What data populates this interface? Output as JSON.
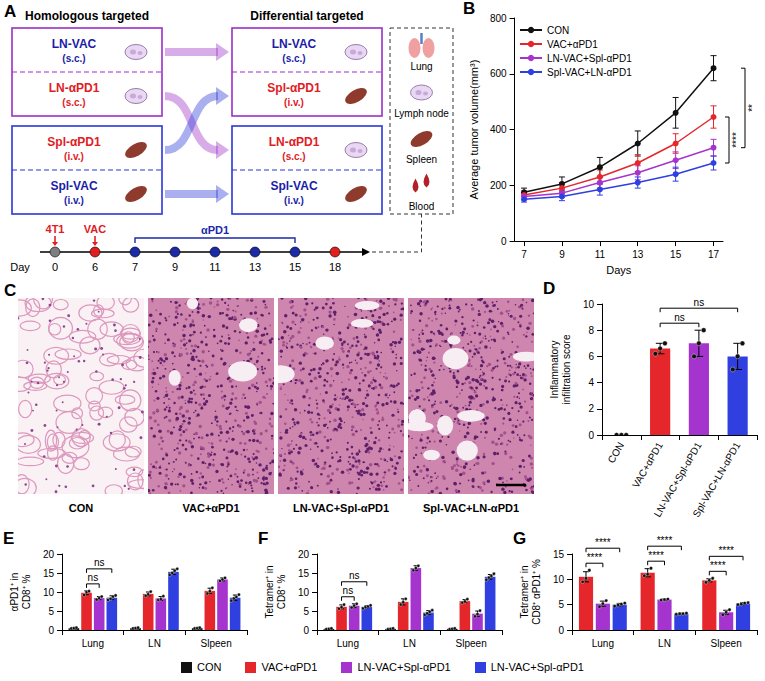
{
  "diagram": {
    "panel": "A",
    "title_left": "Homologous targeted",
    "title_right": "Differential targeted",
    "left": [
      {
        "border": "#9a2fc9",
        "items": [
          {
            "label": "LN-VAC",
            "route": "(s.c.)",
            "color": "#1c1ca8"
          },
          {
            "label": "LN-αPD1",
            "route": "(s.c.)",
            "color": "#e0201f"
          }
        ]
      },
      {
        "border": "#2a36d6",
        "items": [
          {
            "label": "Spl-αPD1",
            "route": "(i.v.)",
            "color": "#e0201f"
          },
          {
            "label": "Spl-VAC",
            "route": "(i.v.)",
            "color": "#1c1ca8"
          }
        ]
      }
    ],
    "right": [
      {
        "border": "#9a2fc9",
        "items": [
          {
            "label": "LN-VAC",
            "route": "(s.c.)",
            "color": "#1c1ca8"
          },
          {
            "label": "Spl-αPD1",
            "route": "(i.v.)",
            "color": "#e0201f"
          }
        ]
      },
      {
        "border": "#2a36d6",
        "items": [
          {
            "label": "LN-αPD1",
            "route": "(s.c.)",
            "color": "#e0201f"
          },
          {
            "label": "Spl-VAC",
            "route": "(i.v.)",
            "color": "#1c1ca8"
          }
        ]
      }
    ],
    "organs": [
      "Lung",
      "Lymph node",
      "Spleen",
      "Blood"
    ],
    "timeline": {
      "label": "Day",
      "days": [
        0,
        6,
        7,
        9,
        11,
        13,
        15,
        18
      ],
      "colors": [
        "#7f7f7f",
        "#e0201f",
        "#1c2aa8",
        "#1c2aa8",
        "#1c2aa8",
        "#1c2aa8",
        "#1c2aa8",
        "#e0201f"
      ],
      "events": [
        {
          "text": "4T1",
          "day": 0,
          "color": "#e0201f"
        },
        {
          "text": "VAC",
          "day": 6,
          "color": "#e0201f"
        },
        {
          "text": "αPD1",
          "from": 7,
          "to": 15,
          "color": "#1c2aa8"
        }
      ]
    }
  },
  "images": {
    "panel": "C",
    "labels": [
      "CON",
      "VAC+αPD1",
      "LN-VAC+Spl-αPD1",
      "Spl-VAC+LN-αPD1"
    ]
  },
  "chart_data": [
    {
      "panel": "B",
      "type": "line",
      "x": [
        7,
        9,
        11,
        13,
        15,
        17
      ],
      "xlim": [
        6.5,
        17.5
      ],
      "xticks": [
        7,
        9,
        11,
        13,
        15,
        17
      ],
      "ylim": [
        0,
        800
      ],
      "yticks": [
        0,
        200,
        400,
        600,
        800
      ],
      "xlabel": "Days",
      "ylabel": "Average tumor volume(mm³)",
      "legend": "top-left",
      "grid": false,
      "marker": "circle",
      "series": [
        {
          "name": "CON",
          "color": "#111111",
          "values": [
            175,
            205,
            265,
            350,
            460,
            620
          ],
          "errors": [
            15,
            25,
            35,
            45,
            55,
            45
          ]
        },
        {
          "name": "VAC+αPD1",
          "color": "#e5262b",
          "values": [
            165,
            190,
            230,
            280,
            350,
            445
          ],
          "errors": [
            15,
            20,
            25,
            30,
            35,
            40
          ]
        },
        {
          "name": "LN-VAC+Spl-αPD1",
          "color": "#a534cf",
          "values": [
            160,
            172,
            210,
            245,
            290,
            335
          ],
          "errors": [
            12,
            15,
            20,
            25,
            30,
            30
          ]
        },
        {
          "name": "Spl-VAC+LN-αPD1",
          "color": "#2f3fe0",
          "values": [
            150,
            160,
            185,
            210,
            240,
            280
          ],
          "errors": [
            10,
            15,
            20,
            20,
            25,
            25
          ]
        }
      ],
      "annotations": [
        {
          "text": "****",
          "y": [
            280,
            445
          ]
        },
        {
          "text": "**",
          "y": [
            335,
            620
          ]
        }
      ]
    },
    {
      "panel": "D",
      "type": "bar",
      "categories": [
        "CON",
        "VAC+αPD1",
        "LN-VAC+Spl-αPD1",
        "Spl-VAC+LN-αPD1"
      ],
      "values": [
        0,
        6.6,
        7.0,
        6.0
      ],
      "errors": [
        0,
        0.4,
        1.0,
        1.0
      ],
      "points": [
        [
          0,
          0,
          0
        ],
        [
          6.2,
          6.6,
          7.0
        ],
        [
          6.0,
          7.0,
          8.0
        ],
        [
          5.0,
          6.0,
          7.0
        ]
      ],
      "colors": [
        "#111111",
        "#e5262b",
        "#a534cf",
        "#2f3fe0"
      ],
      "ylabel": "Inflammatory infiltration score",
      "ylim": [
        0,
        10
      ],
      "yticks": [
        0,
        2,
        4,
        6,
        8,
        10
      ],
      "grid": false,
      "annotations": [
        {
          "text": "ns",
          "from": "VAC+αPD1",
          "to": "LN-VAC+Spl-αPD1"
        },
        {
          "text": "ns",
          "from": "VAC+αPD1",
          "to": "Spl-VAC+LN-αPD1"
        }
      ]
    },
    {
      "panel": "E",
      "type": "bar",
      "categories": [
        "Lung",
        "LN",
        "Slpeen"
      ],
      "ylabel": "αPD1⁺ in CD8⁺ %",
      "ylim": [
        0,
        20
      ],
      "yticks": [
        0,
        5,
        10,
        15,
        20
      ],
      "grid": false,
      "legend": "bottom",
      "series": [
        {
          "name": "CON",
          "color": "#111111",
          "values": [
            0.5,
            0.5,
            0.5
          ],
          "errors": [
            0.1,
            0.1,
            0.1
          ],
          "points": [
            [
              0.4,
              0.5,
              0.6
            ],
            [
              0.4,
              0.5,
              0.6
            ],
            [
              0.4,
              0.5,
              0.6
            ]
          ]
        },
        {
          "name": "VAC+αPD1",
          "color": "#e5262b",
          "values": [
            9.8,
            9.5,
            10.3
          ],
          "errors": [
            0.5,
            0.5,
            0.7
          ],
          "points": [
            [
              9.2,
              10.0,
              10.2
            ],
            [
              9.0,
              9.4,
              10.1
            ],
            [
              9.6,
              10.2,
              11.1
            ]
          ]
        },
        {
          "name": "LN-VAC+Spl-αPD1",
          "color": "#a534cf",
          "values": [
            8.4,
            8.3,
            13.3
          ],
          "errors": [
            0.4,
            0.5,
            0.4
          ],
          "points": [
            [
              8.0,
              8.4,
              8.8
            ],
            [
              7.9,
              8.1,
              8.9
            ],
            [
              12.9,
              13.3,
              13.7
            ]
          ]
        },
        {
          "name": "LN-VAC+Spl-αPD1",
          "color": "#2f3fe0",
          "values": [
            8.5,
            15.3,
            8.5
          ],
          "errors": [
            0.5,
            0.7,
            0.7
          ],
          "points": [
            [
              7.9,
              8.2,
              8.8,
              9.1
            ],
            [
              14.5,
              15.0,
              15.6,
              16.1
            ],
            [
              7.7,
              8.3,
              8.7,
              9.3
            ]
          ]
        }
      ],
      "annotations": [
        {
          "text": "ns",
          "category": "Lung",
          "from": 1,
          "to": 2
        },
        {
          "text": "ns",
          "category": "Lung",
          "from": 1,
          "to": 3
        }
      ]
    },
    {
      "panel": "F",
      "type": "bar",
      "categories": [
        "Lung",
        "LN",
        "Slpeen"
      ],
      "ylabel": "Tetramer⁺ in CD8⁺ %",
      "ylim": [
        0,
        20
      ],
      "yticks": [
        0,
        5,
        10,
        15,
        20
      ],
      "grid": false,
      "series": [
        {
          "name": "CON",
          "color": "#111111",
          "values": [
            0.3,
            0.3,
            0.3
          ],
          "errors": [
            0.1,
            0.1,
            0.1
          ],
          "points": [
            [
              0.2,
              0.3,
              0.4
            ],
            [
              0.2,
              0.3,
              0.4
            ],
            [
              0.2,
              0.3,
              0.4
            ]
          ]
        },
        {
          "name": "VAC+αPD1",
          "color": "#e5262b",
          "values": [
            6.1,
            7.4,
            7.6
          ],
          "errors": [
            0.5,
            0.8,
            0.4
          ],
          "points": [
            [
              5.6,
              6.0,
              6.7
            ],
            [
              6.7,
              7.3,
              8.2
            ],
            [
              7.2,
              7.5,
              8.1
            ]
          ]
        },
        {
          "name": "LN-VAC+Spl-αPD1",
          "color": "#a534cf",
          "values": [
            6.4,
            16.3,
            4.3
          ],
          "errors": [
            0.5,
            0.6,
            0.7
          ],
          "points": [
            [
              5.9,
              6.4,
              6.9
            ],
            [
              15.7,
              16.3,
              16.9
            ],
            [
              3.6,
              4.2,
              5.1
            ]
          ]
        },
        {
          "name": "LN-VAC+Spl-αPD1",
          "color": "#2f3fe0",
          "values": [
            6.1,
            4.6,
            14.0
          ],
          "errors": [
            0.3,
            0.5,
            0.6
          ],
          "points": [
            [
              5.7,
              6.0,
              6.2,
              6.5
            ],
            [
              4.0,
              4.4,
              4.8,
              5.2
            ],
            [
              13.2,
              13.8,
              14.2,
              14.8
            ]
          ]
        }
      ],
      "annotations": [
        {
          "text": "ns",
          "category": "Lung",
          "from": 1,
          "to": 2
        },
        {
          "text": "ns",
          "category": "Lung",
          "from": 1,
          "to": 3
        }
      ]
    },
    {
      "panel": "G",
      "type": "bar",
      "categories": [
        "Lung",
        "LN",
        "Slpeen"
      ],
      "ylabel": "Tetramer⁺ in CD8⁺ αPD1⁺ %",
      "ylim": [
        0,
        15
      ],
      "yticks": [
        0,
        5,
        10,
        15
      ],
      "grid": false,
      "series": [
        {
          "name": "VAC+αPD1",
          "color": "#e5262b",
          "values": [
            10.5,
            11.3,
            9.8
          ],
          "errors": [
            1.0,
            0.8,
            0.3
          ],
          "points": [
            [
              9.5,
              10.2,
              11.8
            ],
            [
              10.7,
              11.0,
              12.2
            ],
            [
              9.4,
              9.8,
              10.2
            ]
          ]
        },
        {
          "name": "LN-VAC+Spl-αPD1",
          "color": "#a534cf",
          "values": [
            5.2,
            6.0,
            3.5
          ],
          "errors": [
            0.5,
            0.1,
            0.4
          ],
          "points": [
            [
              4.6,
              5.2,
              5.8
            ],
            [
              5.9,
              6.0,
              6.1
            ],
            [
              3.0,
              3.5,
              4.0
            ]
          ]
        },
        {
          "name": "LN-VAC+Spl-αPD1",
          "color": "#2f3fe0",
          "values": [
            5.0,
            3.2,
            5.2
          ],
          "errors": [
            0.25,
            0.1,
            0.2
          ],
          "points": [
            [
              4.7,
              4.9,
              5.1,
              5.3
            ],
            [
              3.1,
              3.2,
              3.2,
              3.3
            ],
            [
              5.0,
              5.1,
              5.3,
              5.4
            ]
          ]
        }
      ],
      "annotations": [
        {
          "text": "****",
          "category": "Lung",
          "from": 0,
          "to": 1
        },
        {
          "text": "****",
          "category": "Lung",
          "from": 0,
          "to": 2
        },
        {
          "text": "****",
          "category": "LN",
          "from": 0,
          "to": 1
        },
        {
          "text": "****",
          "category": "LN",
          "from": 0,
          "to": 2
        },
        {
          "text": "****",
          "category": "Slpeen",
          "from": 0,
          "to": 1
        },
        {
          "text": "****",
          "category": "Slpeen",
          "from": 0,
          "to": 2
        }
      ]
    }
  ]
}
